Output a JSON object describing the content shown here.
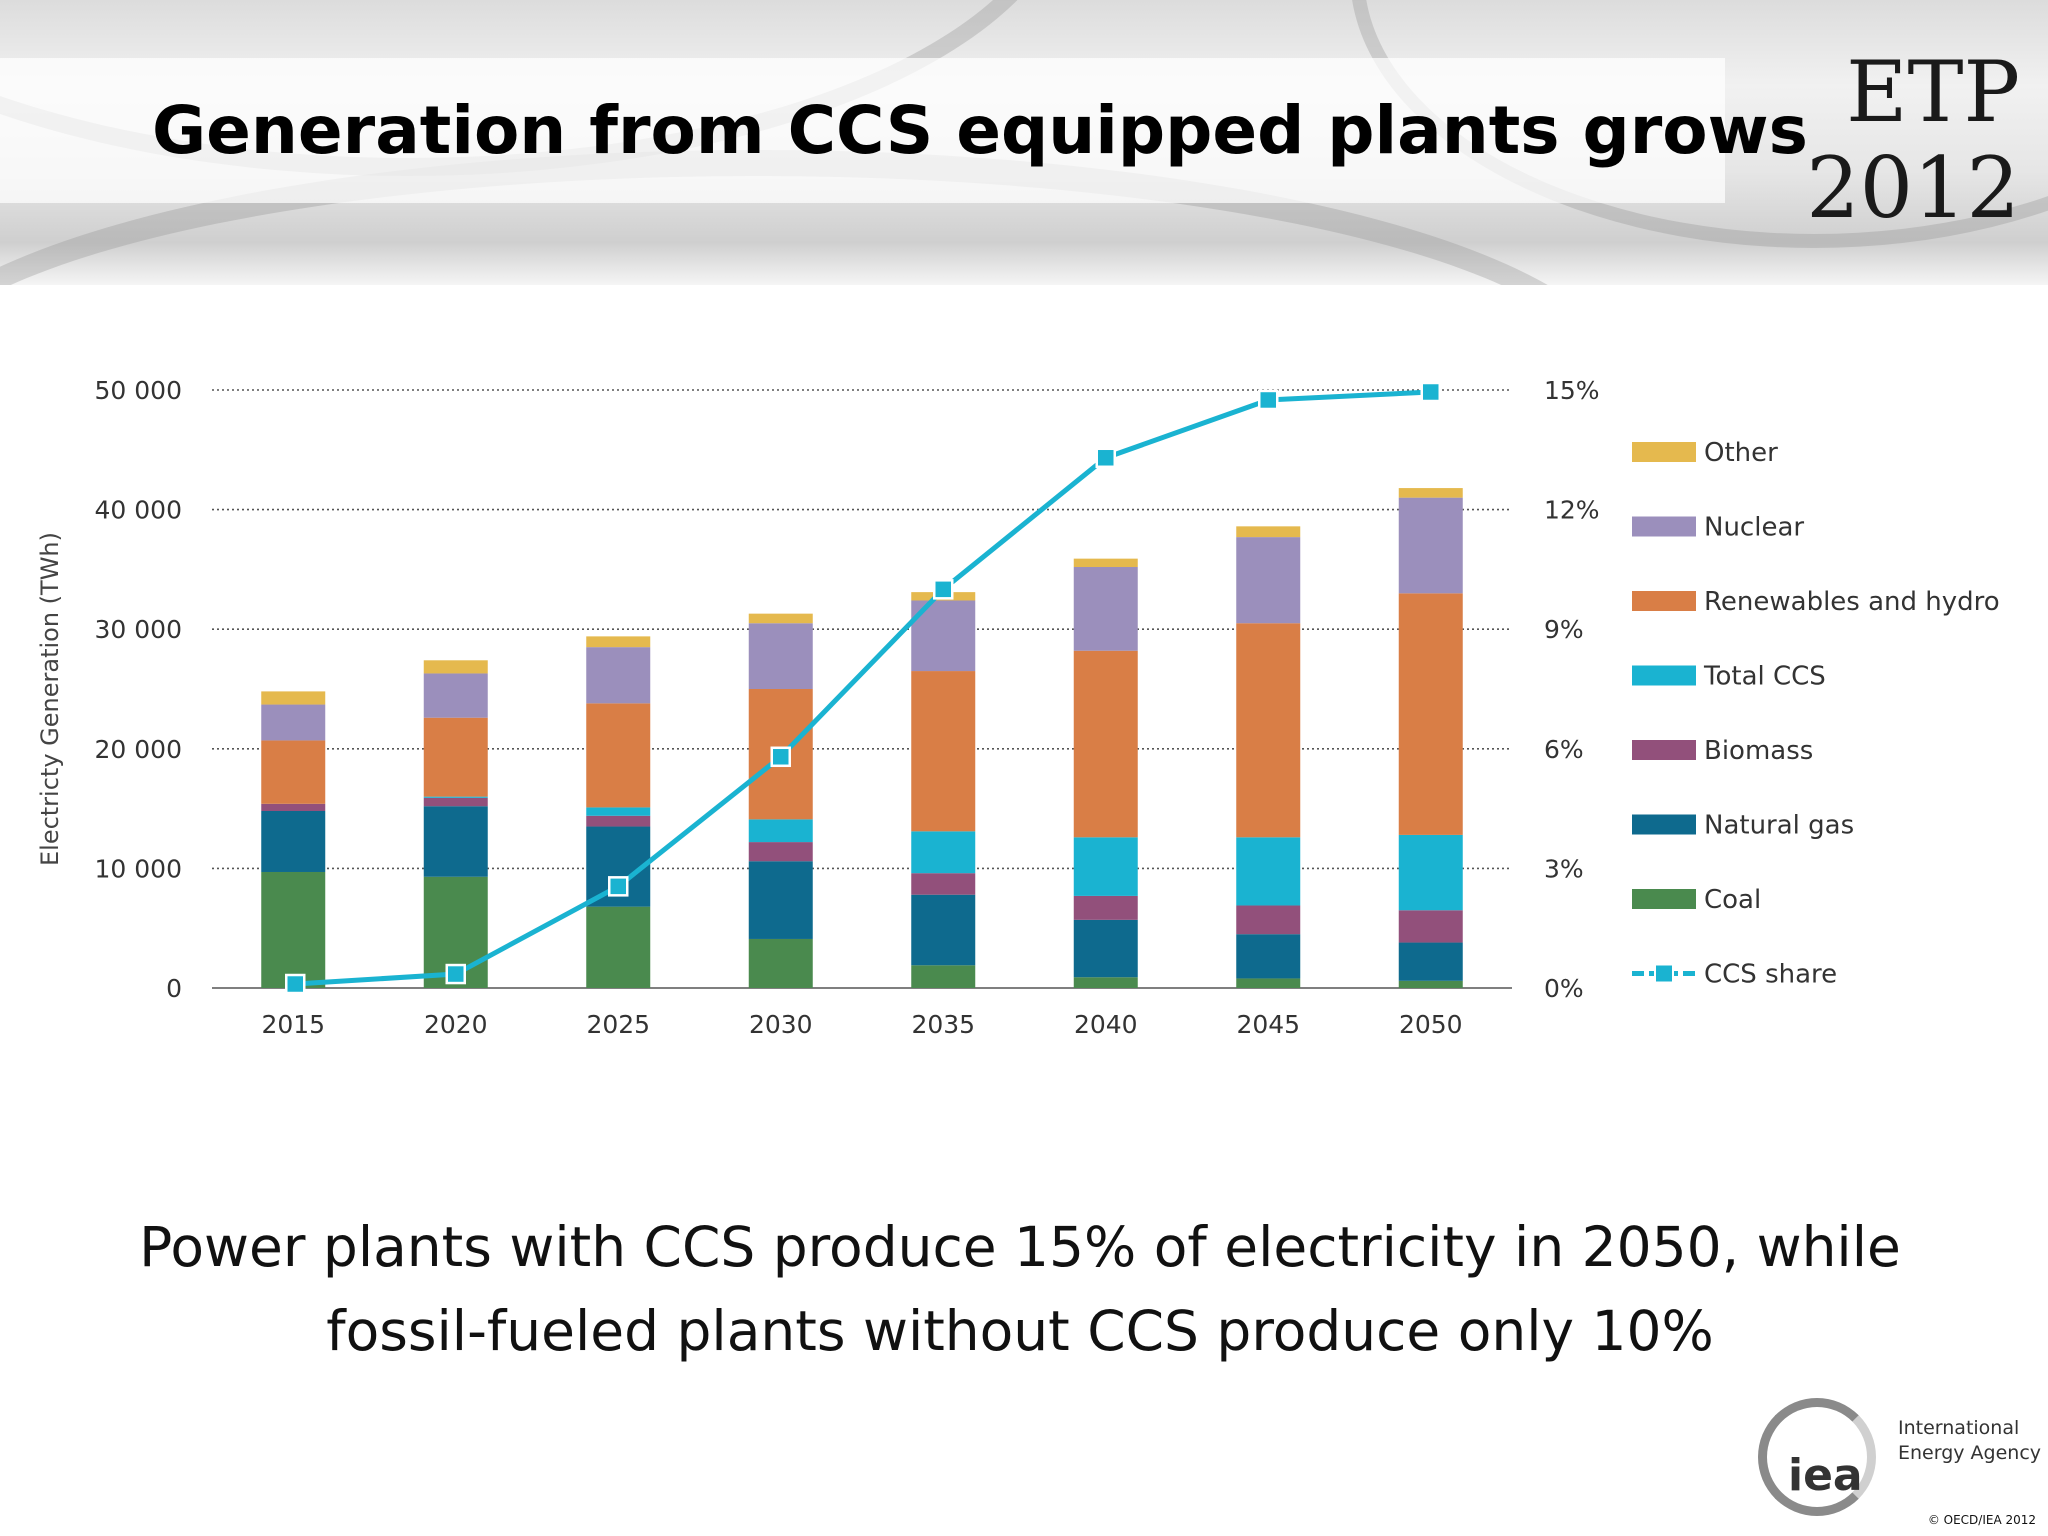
{
  "slide": {
    "title": "Generation from CCS equipped plants grows",
    "badge_line1": "ETP",
    "badge_line2": "2012",
    "caption_line1": "Power plants with CCS produce 15% of electricity in 2050, while",
    "caption_line2": "fossil-fueled plants without CCS produce only 10%",
    "logo_mark": "iea",
    "logo_line1": "International",
    "logo_line2": "Energy Agency",
    "copyright": "© OECD/IEA 2012"
  },
  "chart_data": {
    "type": "bar",
    "stacked": true,
    "title": "",
    "ylabel": "Electricty Generation (TWh)",
    "ylim": [
      0,
      50000
    ],
    "yticks": [
      0,
      10000,
      20000,
      30000,
      40000,
      50000
    ],
    "ytick_labels": [
      "0",
      "10 000",
      "20 000",
      "30 000",
      "40 000",
      "50 000"
    ],
    "y2lim": [
      0,
      15
    ],
    "y2ticks": [
      0,
      3,
      6,
      9,
      12,
      15
    ],
    "y2tick_labels": [
      "0%",
      "3%",
      "6%",
      "9%",
      "12%",
      "15%"
    ],
    "grid": "horizontal dotted",
    "legend": "right",
    "categories": [
      "2015",
      "2020",
      "2025",
      "2030",
      "2035",
      "2040",
      "2045",
      "2050"
    ],
    "series": [
      {
        "name": "Coal",
        "color": "#4a8a4e",
        "values": [
          9700,
          9300,
          6800,
          4100,
          1900,
          900,
          800,
          600
        ]
      },
      {
        "name": "Natural gas",
        "color": "#0e6a8e",
        "values": [
          5100,
          5900,
          6700,
          6500,
          5900,
          4800,
          3700,
          3200
        ]
      },
      {
        "name": "Biomass",
        "color": "#92507b",
        "values": [
          600,
          700,
          900,
          1600,
          1800,
          2000,
          2400,
          2700
        ]
      },
      {
        "name": "Total CCS",
        "color": "#1ab3d1",
        "values": [
          0,
          100,
          700,
          1900,
          3500,
          4900,
          5700,
          6300
        ]
      },
      {
        "name": "Renewables and hydro",
        "color": "#d97e46",
        "values": [
          5300,
          6600,
          8700,
          10900,
          13400,
          15600,
          17900,
          20200
        ]
      },
      {
        "name": "Nuclear",
        "color": "#9b8fbc",
        "values": [
          3000,
          3700,
          4700,
          5500,
          5900,
          7000,
          7200,
          8000
        ]
      },
      {
        "name": "Other",
        "color": "#e5b94e",
        "values": [
          1100,
          1100,
          900,
          800,
          700,
          700,
          900,
          800
        ]
      }
    ],
    "line_series": {
      "name": "CCS share",
      "axis": "secondary",
      "color": "#1ab3d1",
      "values": [
        0.1,
        0.35,
        2.55,
        5.8,
        10.0,
        13.3,
        14.75,
        14.95
      ]
    }
  }
}
